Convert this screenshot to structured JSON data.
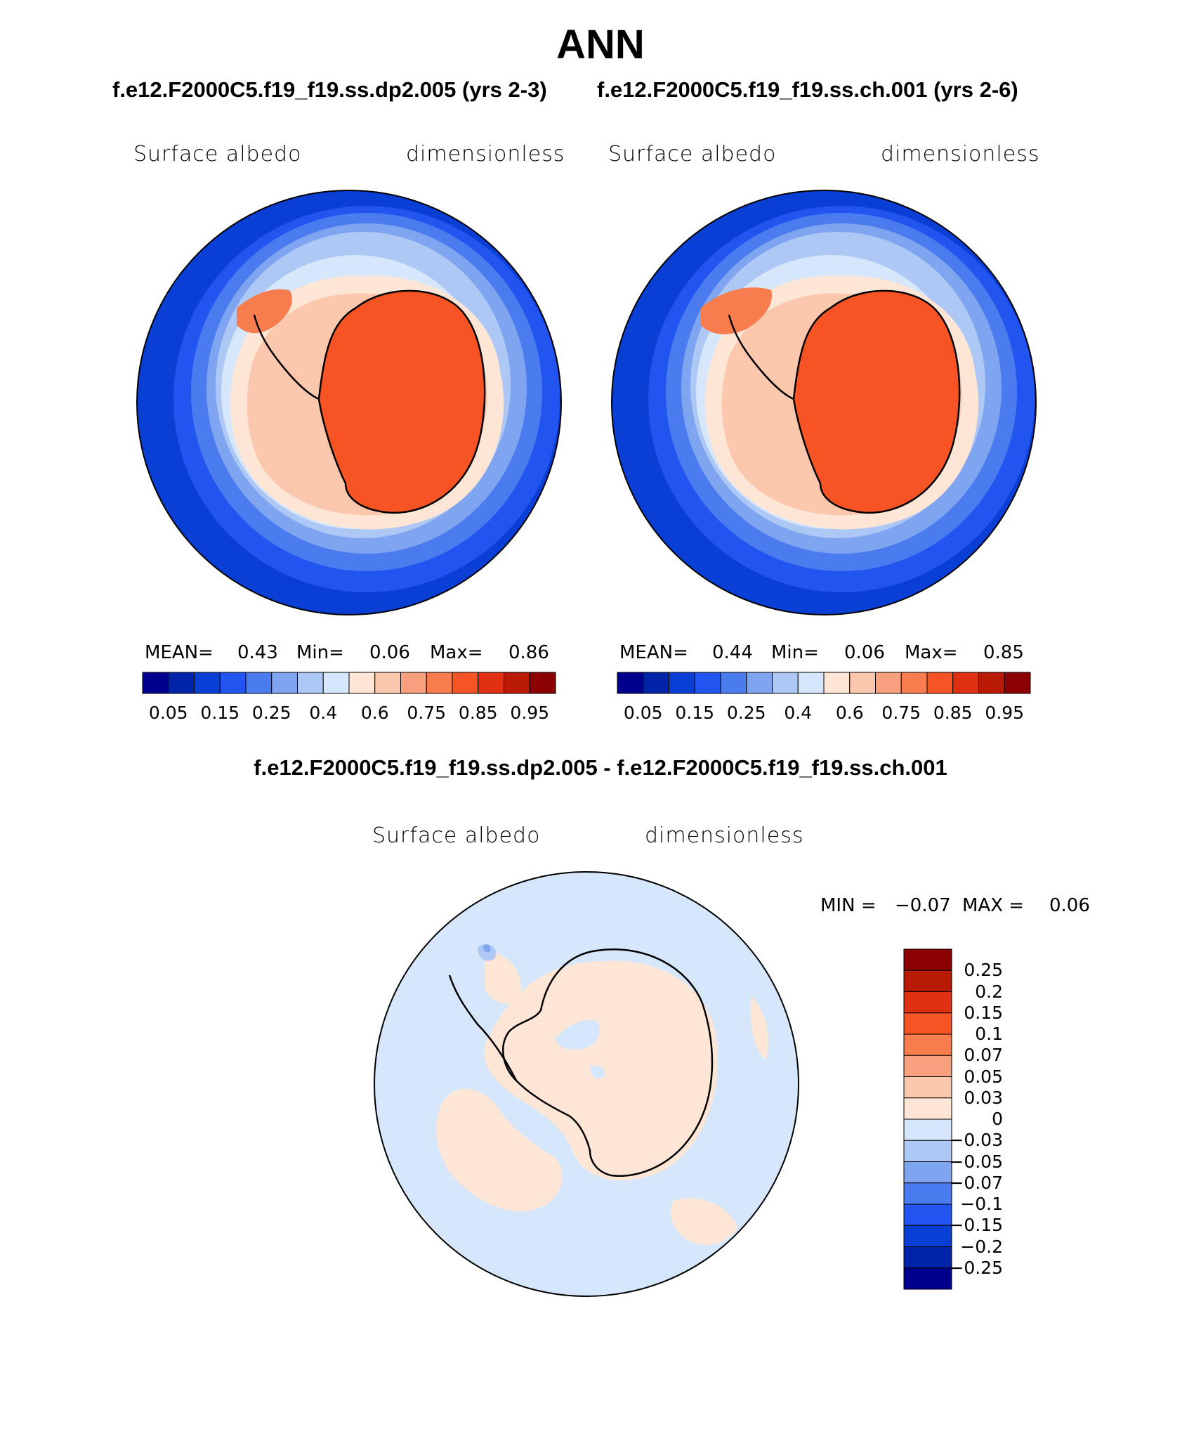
{
  "figure": {
    "season": "ANN",
    "case_a_title": "f.e12.F2000C5.f19_f19.ss.dp2.005 (yrs 2-3)",
    "case_b_title": "f.e12.F2000C5.f19_f19.ss.ch.001 (yrs 2-6)",
    "diff_title": "f.e12.F2000C5.f19_f19.ss.dp2.005 - f.e12.F2000C5.f19_f19.ss.ch.001"
  },
  "panels": [
    {
      "variable": "Surface albedo",
      "units": "dimensionless",
      "stats": {
        "mean_label": "MEAN=",
        "mean": "0.43",
        "min_label": "Min=",
        "min": "0.06",
        "max_label": "Max=",
        "max": "0.86"
      }
    },
    {
      "variable": "Surface albedo",
      "units": "dimensionless",
      "stats": {
        "mean_label": "MEAN=",
        "mean": "0.44",
        "min_label": "Min=",
        "min": "0.06",
        "max_label": "Max=",
        "max": "0.85"
      }
    },
    {
      "variable": "Surface albedo",
      "units": "dimensionless",
      "stats": {
        "min_label": "MIN =",
        "min": "−0.07",
        "max_label": "MAX =",
        "max": "0.06"
      }
    }
  ],
  "colorbar_abs": {
    "colors": [
      "#00008f",
      "#0024a8",
      "#0a3fd6",
      "#2255f0",
      "#4a7cf0",
      "#7fa4f0",
      "#aec8f5",
      "#d6e6fb",
      "#fde6d6",
      "#fbc7ad",
      "#f8a07e",
      "#f87d4e",
      "#f65424",
      "#e03012",
      "#b81a06",
      "#8b0000"
    ],
    "ticks": [
      "0.05",
      "0.15",
      "0.25",
      "0.4",
      "0.6",
      "0.75",
      "0.85",
      "0.95"
    ]
  },
  "colorbar_diff": {
    "colors": [
      "#8b0000",
      "#b81a06",
      "#e03012",
      "#f65424",
      "#f87d4e",
      "#f8a07e",
      "#fbc7ad",
      "#fde6d6",
      "#d6e6fb",
      "#aec8f5",
      "#7fa4f0",
      "#4a7cf0",
      "#2255f0",
      "#0a3fd6",
      "#0024a8",
      "#00008f"
    ],
    "ticks": [
      "0.25",
      "0.2",
      "0.15",
      "0.1",
      "0.07",
      "0.05",
      "0.03",
      "0",
      "−0.03",
      "−0.05",
      "−0.07",
      "−0.1",
      "−0.15",
      "−0.2",
      "−0.25"
    ]
  },
  "map_colors": {
    "ocean_low": "#0a3fd6",
    "ice_land": "#f65424",
    "diff_neutral_neg": "#d6e6fb",
    "diff_neutral_pos": "#fde6d6"
  }
}
